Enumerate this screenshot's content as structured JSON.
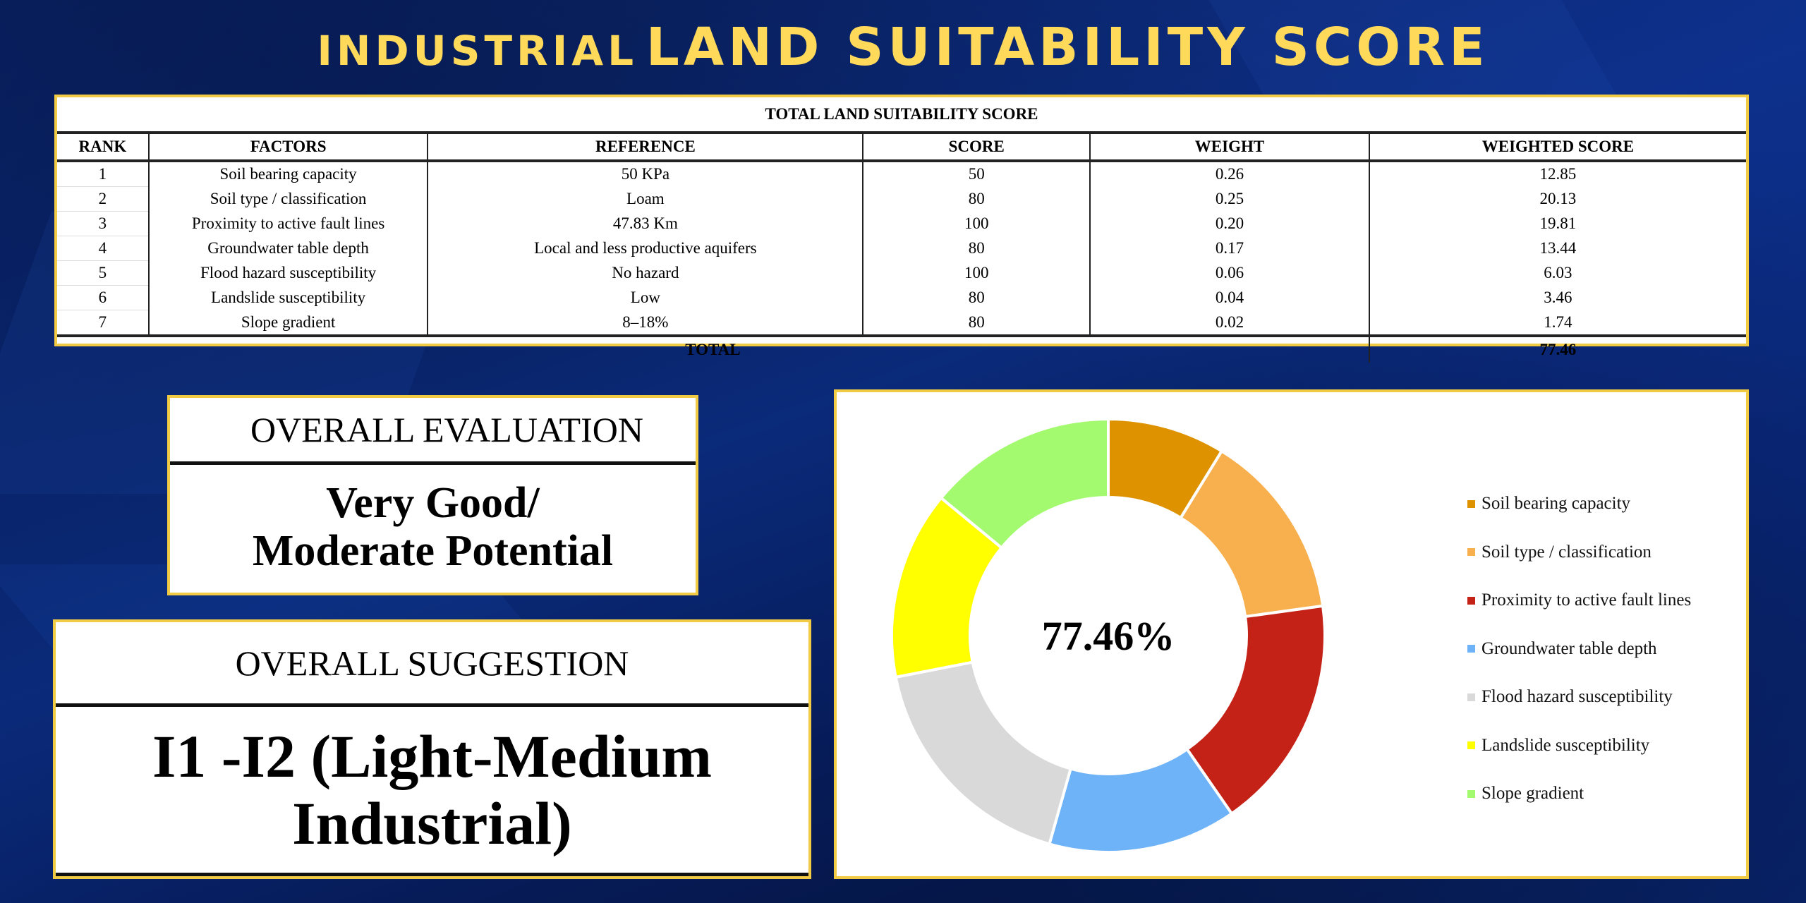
{
  "title": {
    "part1": "INDUSTRIAL",
    "part2": "LAND SUITABILITY SCORE"
  },
  "table": {
    "caption": "TOTAL LAND SUITABILITY SCORE",
    "headers": [
      "RANK",
      "FACTORS",
      "REFERENCE",
      "SCORE",
      "WEIGHT",
      "WEIGHTED SCORE"
    ],
    "rows": [
      [
        "1",
        "Soil bearing capacity",
        "50 KPa",
        "50",
        "0.26",
        "12.85"
      ],
      [
        "2",
        "Soil type / classification",
        "Loam",
        "80",
        "0.25",
        "20.13"
      ],
      [
        "3",
        "Proximity to active fault lines",
        "47.83 Km",
        "100",
        "0.20",
        "19.81"
      ],
      [
        "4",
        "Groundwater table depth",
        "Local and less productive aquifers",
        "80",
        "0.17",
        "13.44"
      ],
      [
        "5",
        "Flood hazard susceptibility",
        "No hazard",
        "100",
        "0.06",
        "6.03"
      ],
      [
        "6",
        "Landslide susceptibility",
        "Low",
        "80",
        "0.04",
        "3.46"
      ],
      [
        "7",
        "Slope gradient",
        "8–18%",
        "80",
        "0.02",
        "1.74"
      ]
    ],
    "total_label": "TOTAL",
    "total_value": "77.46"
  },
  "evaluation": {
    "heading": "OVERALL EVALUATION",
    "line1": "Very Good/",
    "line2": "Moderate Potential"
  },
  "suggestion": {
    "heading": "OVERALL SUGGESTION",
    "line1": "I1 -I2 (Light-Medium",
    "line2": "Industrial)"
  },
  "chart_data": {
    "type": "pie",
    "variant": "donut",
    "center_label": "77.46%",
    "categories": [
      "Soil bearing capacity",
      "Soil type / classification",
      "Proximity to active fault lines",
      "Groundwater table depth",
      "Flood hazard susceptibility",
      "Landslide susceptibility",
      "Slope gradient"
    ],
    "values": [
      50,
      80,
      100,
      80,
      100,
      80,
      80
    ],
    "colors": [
      "#DE9200",
      "#F8B04E",
      "#C42117",
      "#6EB2F8",
      "#D9D9D9",
      "#FFFF00",
      "#A3FA6E"
    ],
    "legend_position": "right"
  }
}
